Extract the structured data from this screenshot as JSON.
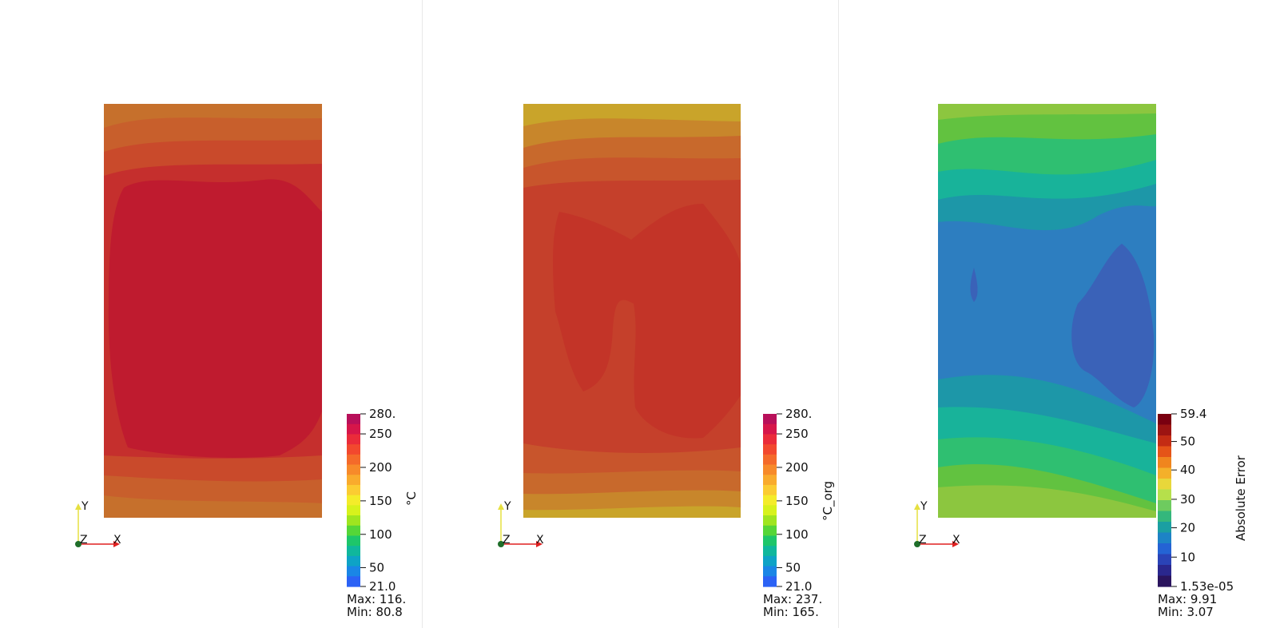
{
  "views": [
    {
      "name": "temperature",
      "fill_colors": [
        "#c6702c",
        "#c85f2c",
        "#c94a2b",
        "#c52f2d",
        "#bf1b2f"
      ],
      "colorbar": {
        "title": "°C",
        "ticks": [
          "280.",
          "250",
          "200",
          "150",
          "100",
          "50",
          "21.0"
        ]
      },
      "stats": {
        "max": "Max: 116.",
        "min": "Min: 80.8"
      }
    },
    {
      "name": "temperature-org",
      "fill_colors": [
        "#c9a42a",
        "#c8862b",
        "#c8692c",
        "#c8552c",
        "#c5402b",
        "#c33428"
      ],
      "colorbar": {
        "title": "°C_org",
        "ticks": [
          "280.",
          "250",
          "200",
          "150",
          "100",
          "50",
          "21.0"
        ]
      },
      "stats": {
        "max": "Max: 237.",
        "min": "Min: 165."
      }
    },
    {
      "name": "absolute-error",
      "fill_colors": [
        "#8cc63f",
        "#62c240",
        "#2fbf71",
        "#18b39a",
        "#1d97a8",
        "#2d7ec0",
        "#3a62b8"
      ],
      "colorbar": {
        "title": "Absolute Error",
        "ticks": [
          "59.4",
          "50",
          "40",
          "30",
          "20",
          "10",
          "1.53e-05"
        ]
      },
      "stats": {
        "max": "Max: 9.91",
        "min": "Min: 3.07"
      }
    }
  ],
  "axes_triad": {
    "x": "X",
    "y": "Y",
    "z": "Z"
  },
  "colormaps": {
    "jet_like": [
      "#b8105a",
      "#d6164a",
      "#ea2b3a",
      "#f2482e",
      "#f46a2a",
      "#f78a2a",
      "#f9ab2d",
      "#fbcc32",
      "#f4ec2a",
      "#d7f21c",
      "#9fe51f",
      "#55d638",
      "#1ec66a",
      "#10b79c",
      "#0ea3c6",
      "#1a86e6",
      "#2b62f5"
    ],
    "error_map": [
      "#7a0010",
      "#9d1412",
      "#c42c14",
      "#e55418",
      "#f0851e",
      "#f4b02a",
      "#e8d73a",
      "#b6e04b",
      "#6ecb5f",
      "#34b77c",
      "#1b9fa2",
      "#1d83c6",
      "#2463d4",
      "#2a43b7",
      "#2a278e",
      "#2a145e"
    ]
  }
}
